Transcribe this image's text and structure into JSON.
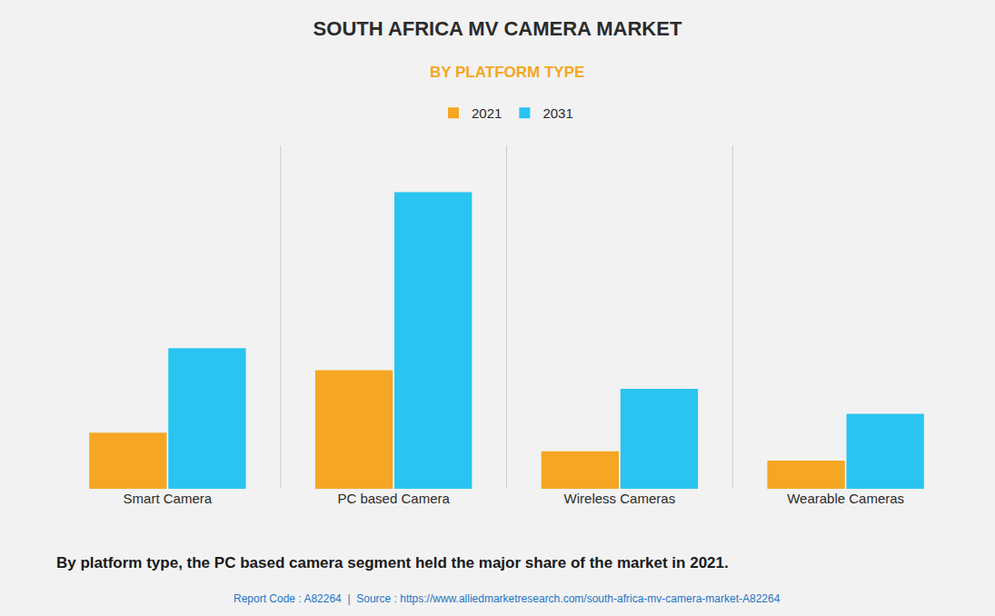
{
  "chart_data": {
    "type": "bar",
    "title": "SOUTH AFRICA MV CAMERA MARKET",
    "subtitle": "BY PLATFORM TYPE",
    "annotations": [
      "By platform type, the PC based camera segment held the major share of the market in 2021.",
      "Report Code : A82264  |  Source : https://www.alliedmarketresearch.com/south-africa-mv-camera-market-A82264"
    ],
    "categories": [
      "Smart Camera",
      "PC based Camera",
      "Wireless Cameras",
      "Wearable Cameras"
    ],
    "series": [
      {
        "name": "2021",
        "color": "#F5A623",
        "values": [
          18,
          38,
          12,
          9
        ]
      },
      {
        "name": "2031",
        "color": "#29C4F0",
        "values": [
          45,
          95,
          32,
          24
        ]
      }
    ],
    "ylim": [
      0,
      110
    ],
    "yticks": [
      0,
      110
    ],
    "grid": true,
    "legend": "top",
    "tick_labels": "x"
  }
}
